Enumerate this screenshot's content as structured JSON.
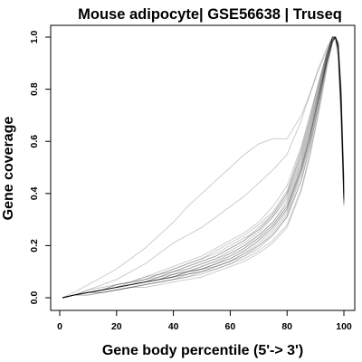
{
  "chart_data": {
    "type": "line",
    "title": "Mouse adipocyte| GSE56638 | Truseq",
    "xlabel": "Gene body percentile (5'-> 3')",
    "ylabel": "Gene coverage",
    "xlim": [
      0,
      100
    ],
    "ylim": [
      0,
      1
    ],
    "x_ticks": [
      0,
      20,
      40,
      60,
      80,
      100
    ],
    "y_ticks": [
      0.0,
      0.2,
      0.4,
      0.6,
      0.8,
      1.0
    ],
    "x_tick_labels": [
      "0",
      "20",
      "40",
      "60",
      "80",
      "100"
    ],
    "y_tick_labels": [
      "0.0",
      "0.2",
      "0.4",
      "0.6",
      "0.8",
      "1.0"
    ],
    "grid": false,
    "legend": "none",
    "line_color": "#000000",
    "x": [
      1,
      5,
      10,
      15,
      20,
      25,
      30,
      35,
      40,
      45,
      50,
      55,
      60,
      65,
      70,
      75,
      80,
      85,
      88,
      91,
      94,
      96,
      97,
      98,
      99,
      100
    ],
    "series": [
      {
        "values": [
          0.0,
          0.01,
          0.03,
          0.05,
          0.07,
          0.1,
          0.13,
          0.17,
          0.21,
          0.24,
          0.27,
          0.31,
          0.35,
          0.39,
          0.44,
          0.49,
          0.55,
          0.68,
          0.78,
          0.88,
          0.96,
          1.0,
          1.0,
          0.93,
          0.7,
          0.45
        ]
      },
      {
        "values": [
          0.0,
          0.02,
          0.05,
          0.08,
          0.11,
          0.15,
          0.19,
          0.24,
          0.29,
          0.35,
          0.4,
          0.45,
          0.5,
          0.55,
          0.59,
          0.61,
          0.61,
          0.7,
          0.78,
          0.87,
          0.95,
          1.0,
          0.99,
          0.92,
          0.66,
          0.38
        ]
      },
      {
        "values": [
          0.0,
          0.01,
          0.02,
          0.03,
          0.05,
          0.06,
          0.08,
          0.1,
          0.12,
          0.14,
          0.16,
          0.19,
          0.22,
          0.25,
          0.29,
          0.35,
          0.43,
          0.58,
          0.7,
          0.82,
          0.94,
          1.0,
          1.0,
          0.96,
          0.74,
          0.4
        ]
      },
      {
        "values": [
          0.0,
          0.01,
          0.02,
          0.02,
          0.03,
          0.04,
          0.05,
          0.06,
          0.07,
          0.08,
          0.1,
          0.11,
          0.13,
          0.16,
          0.19,
          0.24,
          0.31,
          0.45,
          0.58,
          0.73,
          0.9,
          0.98,
          1.0,
          0.97,
          0.78,
          0.42
        ]
      },
      {
        "values": [
          0.0,
          0.01,
          0.02,
          0.03,
          0.04,
          0.05,
          0.06,
          0.07,
          0.09,
          0.1,
          0.12,
          0.14,
          0.17,
          0.2,
          0.24,
          0.29,
          0.37,
          0.52,
          0.64,
          0.78,
          0.92,
          0.99,
          1.0,
          0.97,
          0.76,
          0.4
        ]
      },
      {
        "values": [
          0.0,
          0.01,
          0.02,
          0.03,
          0.04,
          0.05,
          0.06,
          0.07,
          0.08,
          0.1,
          0.11,
          0.13,
          0.15,
          0.18,
          0.22,
          0.27,
          0.34,
          0.49,
          0.61,
          0.76,
          0.91,
          0.99,
          1.0,
          0.96,
          0.75,
          0.38
        ]
      },
      {
        "values": [
          0.0,
          0.01,
          0.02,
          0.03,
          0.04,
          0.05,
          0.06,
          0.08,
          0.09,
          0.11,
          0.13,
          0.15,
          0.18,
          0.21,
          0.25,
          0.31,
          0.39,
          0.54,
          0.66,
          0.79,
          0.93,
          1.0,
          1.0,
          0.96,
          0.74,
          0.36
        ]
      },
      {
        "values": [
          0.0,
          0.01,
          0.01,
          0.02,
          0.03,
          0.04,
          0.05,
          0.06,
          0.07,
          0.08,
          0.09,
          0.11,
          0.13,
          0.15,
          0.18,
          0.22,
          0.28,
          0.42,
          0.55,
          0.71,
          0.89,
          0.98,
          1.0,
          0.98,
          0.8,
          0.44
        ]
      },
      {
        "values": [
          0.0,
          0.01,
          0.02,
          0.03,
          0.04,
          0.05,
          0.06,
          0.08,
          0.1,
          0.12,
          0.14,
          0.16,
          0.19,
          0.22,
          0.27,
          0.32,
          0.4,
          0.55,
          0.67,
          0.8,
          0.93,
          1.0,
          1.0,
          0.95,
          0.73,
          0.37
        ]
      },
      {
        "values": [
          0.0,
          0.01,
          0.02,
          0.03,
          0.04,
          0.05,
          0.06,
          0.07,
          0.08,
          0.09,
          0.11,
          0.12,
          0.14,
          0.17,
          0.2,
          0.25,
          0.32,
          0.47,
          0.59,
          0.74,
          0.91,
          0.99,
          1.0,
          0.97,
          0.77,
          0.39
        ]
      },
      {
        "values": [
          0.0,
          0.01,
          0.02,
          0.03,
          0.04,
          0.05,
          0.07,
          0.08,
          0.1,
          0.11,
          0.13,
          0.15,
          0.17,
          0.2,
          0.24,
          0.29,
          0.36,
          0.51,
          0.63,
          0.77,
          0.92,
          0.99,
          1.0,
          0.96,
          0.75,
          0.41
        ]
      },
      {
        "values": [
          0.0,
          0.01,
          0.02,
          0.02,
          0.03,
          0.04,
          0.05,
          0.06,
          0.07,
          0.09,
          0.1,
          0.12,
          0.14,
          0.17,
          0.21,
          0.26,
          0.33,
          0.48,
          0.6,
          0.75,
          0.91,
          0.99,
          1.0,
          0.97,
          0.78,
          0.37
        ]
      },
      {
        "values": [
          0.0,
          0.01,
          0.02,
          0.03,
          0.05,
          0.06,
          0.07,
          0.09,
          0.11,
          0.13,
          0.15,
          0.17,
          0.2,
          0.23,
          0.26,
          0.31,
          0.38,
          0.53,
          0.65,
          0.79,
          0.93,
          1.0,
          1.0,
          0.95,
          0.72,
          0.35
        ]
      },
      {
        "values": [
          0.0,
          0.01,
          0.01,
          0.02,
          0.03,
          0.04,
          0.04,
          0.05,
          0.06,
          0.07,
          0.08,
          0.1,
          0.12,
          0.14,
          0.17,
          0.21,
          0.27,
          0.41,
          0.54,
          0.7,
          0.88,
          0.98,
          1.0,
          0.98,
          0.81,
          0.46
        ]
      },
      {
        "values": [
          0.0,
          0.01,
          0.02,
          0.03,
          0.04,
          0.06,
          0.07,
          0.09,
          0.1,
          0.12,
          0.14,
          0.16,
          0.19,
          0.22,
          0.26,
          0.32,
          0.4,
          0.56,
          0.68,
          0.81,
          0.94,
          1.0,
          1.0,
          0.95,
          0.73,
          0.38
        ]
      },
      {
        "values": [
          0.0,
          0.01,
          0.02,
          0.03,
          0.04,
          0.05,
          0.06,
          0.07,
          0.08,
          0.1,
          0.11,
          0.13,
          0.16,
          0.19,
          0.23,
          0.28,
          0.35,
          0.5,
          0.62,
          0.76,
          0.91,
          0.99,
          1.0,
          0.96,
          0.76,
          0.4
        ]
      },
      {
        "values": [
          0.0,
          0.01,
          0.02,
          0.03,
          0.04,
          0.05,
          0.06,
          0.07,
          0.08,
          0.09,
          0.1,
          0.12,
          0.14,
          0.16,
          0.2,
          0.24,
          0.31,
          0.45,
          0.57,
          0.73,
          0.9,
          0.98,
          1.0,
          0.97,
          0.79,
          0.43
        ]
      },
      {
        "values": [
          0.0,
          0.01,
          0.02,
          0.03,
          0.04,
          0.05,
          0.06,
          0.07,
          0.09,
          0.1,
          0.12,
          0.14,
          0.16,
          0.19,
          0.23,
          0.28,
          0.35,
          0.5,
          0.62,
          0.77,
          0.92,
          0.99,
          1.0,
          0.97,
          0.77,
          0.41
        ]
      },
      {
        "values": [
          0.0,
          0.01,
          0.03,
          0.04,
          0.05,
          0.06,
          0.08,
          0.09,
          0.11,
          0.13,
          0.15,
          0.18,
          0.21,
          0.24,
          0.28,
          0.33,
          0.41,
          0.57,
          0.69,
          0.82,
          0.94,
          1.0,
          1.0,
          0.95,
          0.71,
          0.36
        ]
      },
      {
        "values": [
          0.0,
          0.01,
          0.02,
          0.03,
          0.04,
          0.05,
          0.06,
          0.07,
          0.08,
          0.1,
          0.11,
          0.13,
          0.15,
          0.18,
          0.22,
          0.27,
          0.34,
          0.49,
          0.61,
          0.76,
          0.91,
          0.99,
          1.0,
          0.97,
          0.77,
          0.38
        ]
      }
    ]
  }
}
